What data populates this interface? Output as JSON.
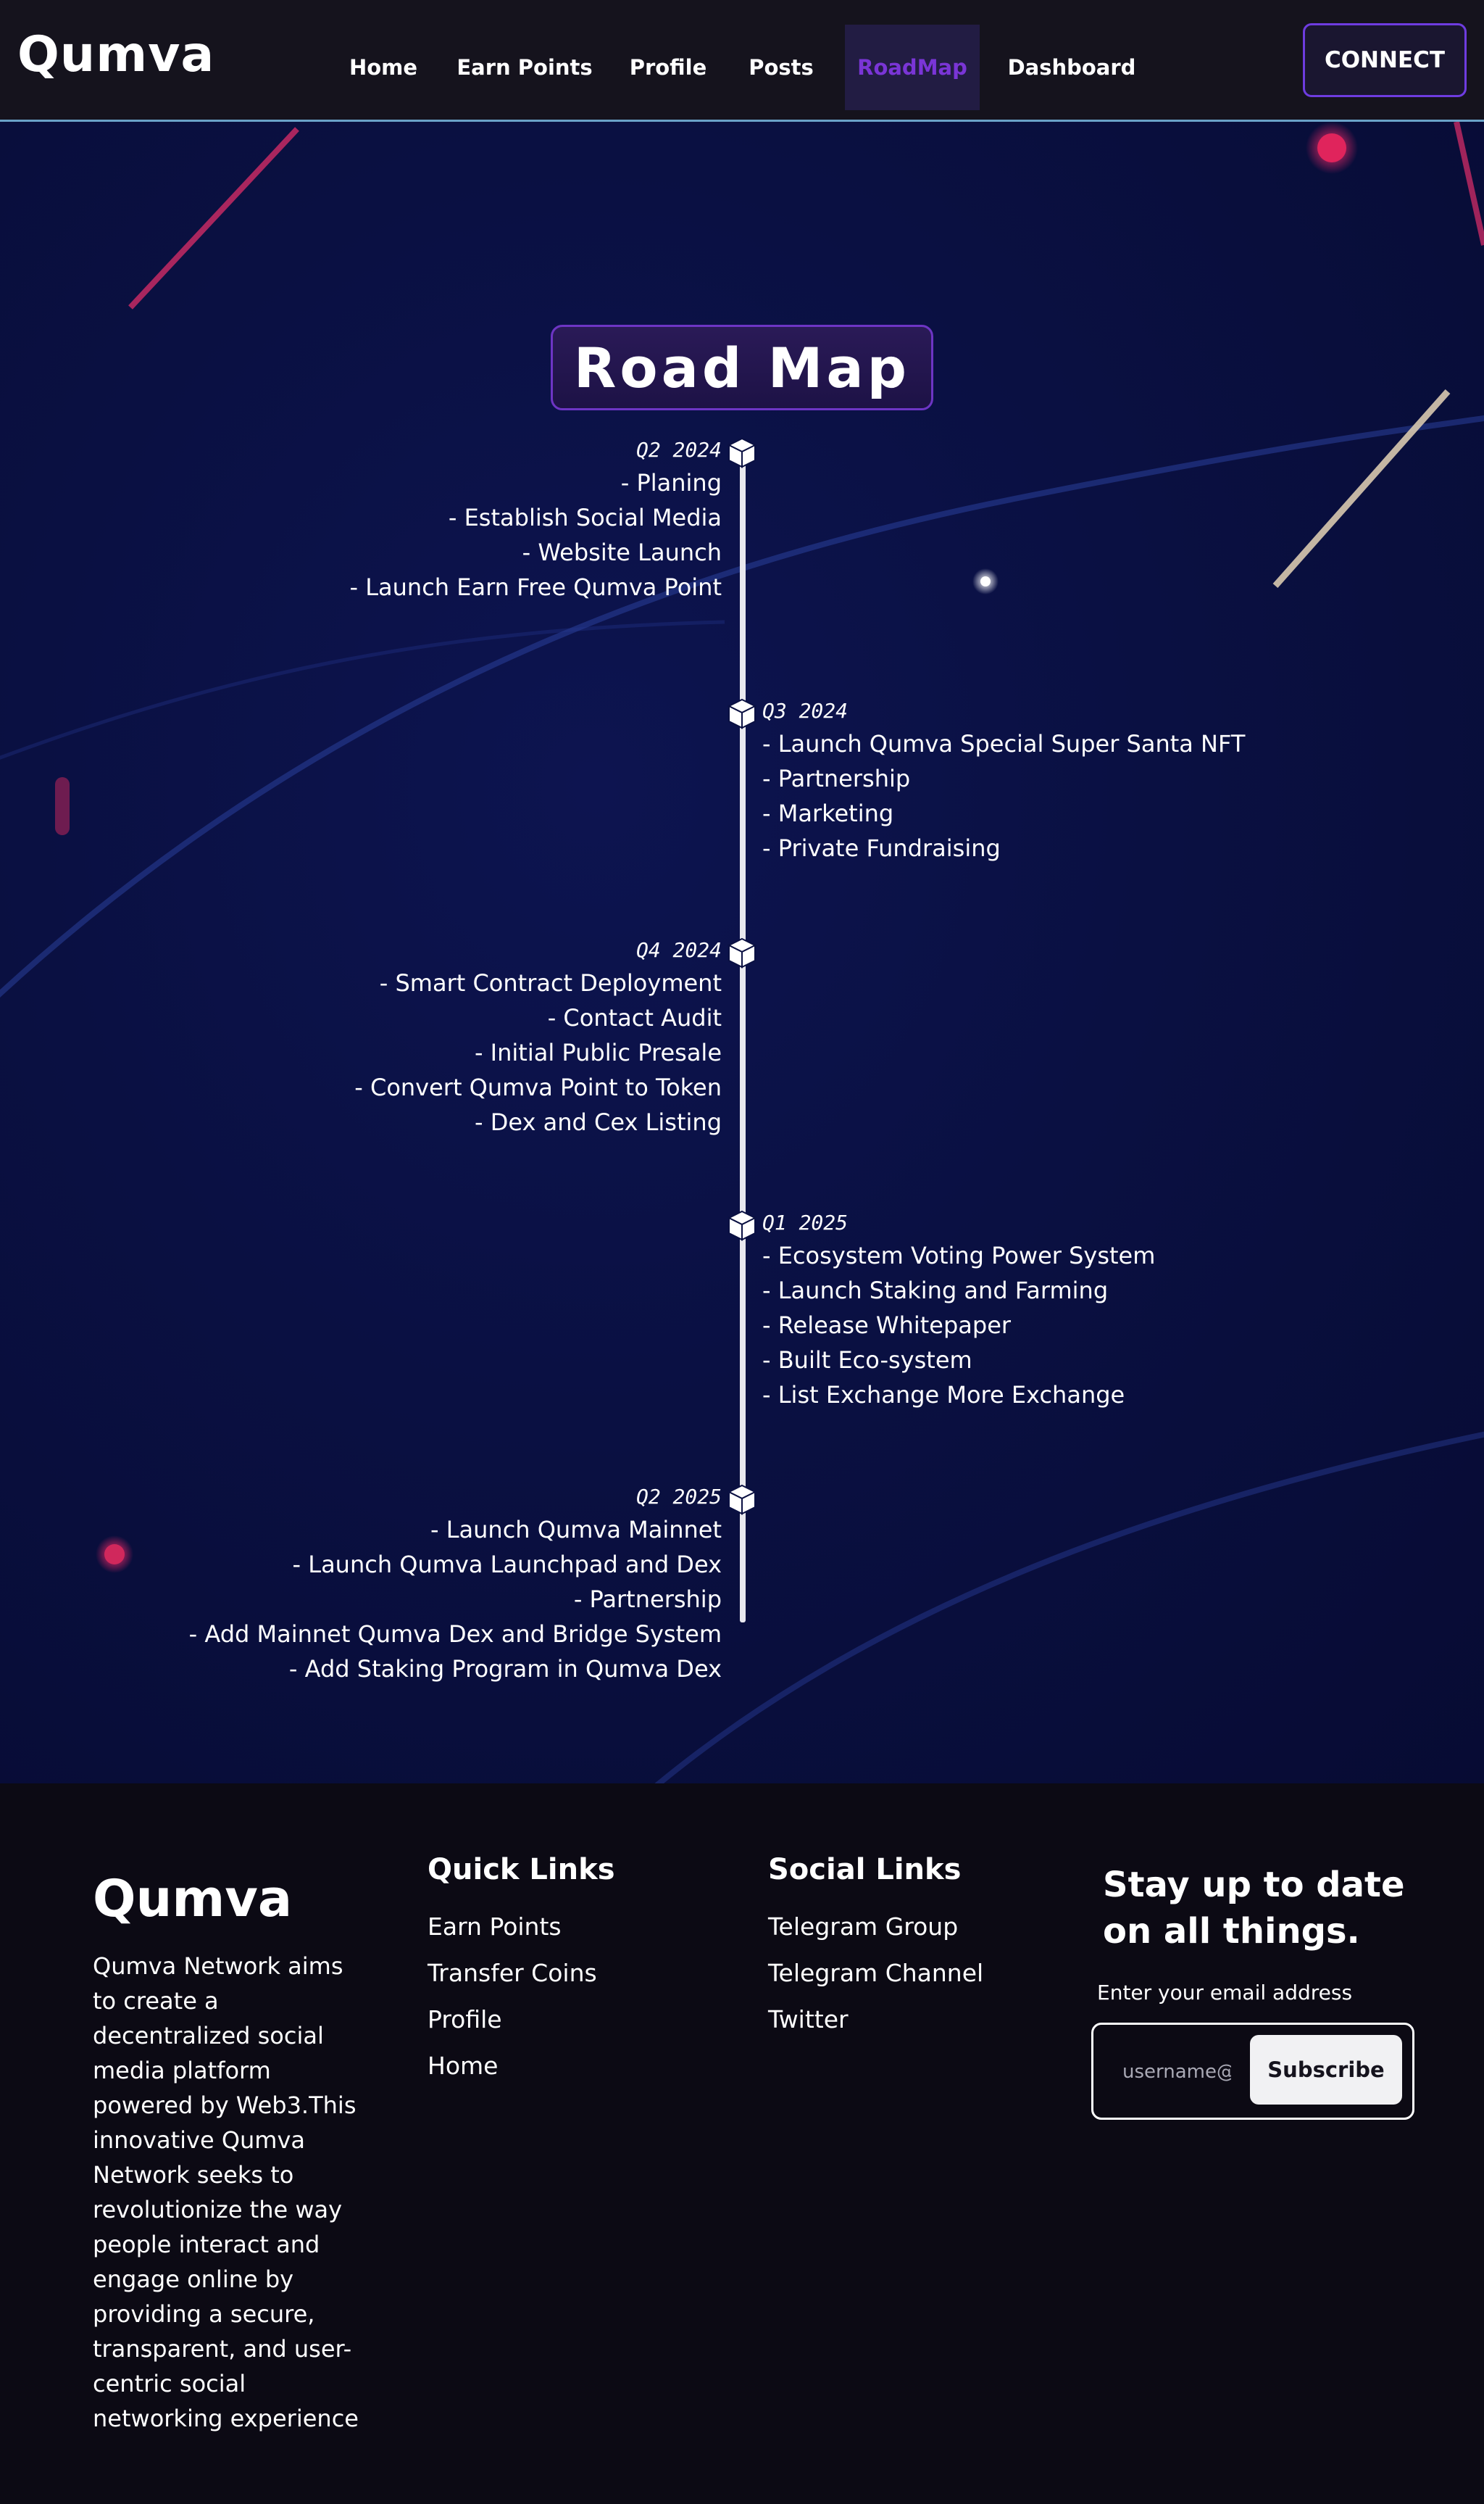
{
  "header": {
    "brand": "Qumva",
    "nav": [
      {
        "label": "Home",
        "name": "nav-home"
      },
      {
        "label": "Earn Points",
        "name": "nav-earn-points"
      },
      {
        "label": "Profile",
        "name": "nav-profile"
      },
      {
        "label": "Posts",
        "name": "nav-posts"
      },
      {
        "label": "RoadMap",
        "name": "nav-roadmap",
        "active": true
      },
      {
        "label": "Dashboard",
        "name": "nav-dashboard"
      }
    ],
    "connect_label": "CONNECT"
  },
  "roadmap": {
    "title": "Road Map",
    "milestones": [
      {
        "quarter": "Q2 2024",
        "side": "left",
        "items": [
          "- Planing",
          "- Establish Social Media",
          "- Website Launch",
          "- Launch Earn Free Qumva Point"
        ]
      },
      {
        "quarter": "Q3 2024",
        "side": "right",
        "items": [
          "- Launch Qumva Special Super Santa NFT",
          "- Partnership",
          "- Marketing",
          "- Private Fundraising"
        ]
      },
      {
        "quarter": "Q4 2024",
        "side": "left",
        "items": [
          "- Smart Contract Deployment",
          "- Contact Audit",
          "- Initial Public Presale",
          "- Convert Qumva Point to Token",
          "- Dex and Cex Listing"
        ]
      },
      {
        "quarter": "Q1 2025",
        "side": "right",
        "items": [
          "- Ecosystem Voting Power System",
          "- Launch Staking and Farming",
          "- Release Whitepaper",
          "- Built Eco-system",
          "- List Exchange More Exchange"
        ]
      },
      {
        "quarter": "Q2 2025",
        "side": "left",
        "items": [
          "- Launch Qumva Mainnet",
          "- Launch Qumva Launchpad and Dex",
          "- Partnership",
          "- Add Mainnet Qumva Dex and Bridge System",
          "- Add Staking Program in Qumva Dex"
        ]
      }
    ]
  },
  "footer": {
    "brand": "Qumva",
    "about": "Qumva Network aims to create a decentralized social media platform powered by Web3.This innovative Qumva Network seeks to revolutionize the way people interact and engage online by providing a secure, transparent, and user-centric social networking experience",
    "quick_links": {
      "title": "Quick Links",
      "items": [
        "Earn Points",
        "Transfer Coins",
        "Profile",
        "Home"
      ]
    },
    "social_links": {
      "title": "Social Links",
      "items": [
        "Telegram Group",
        "Telegram Channel",
        "Twitter"
      ]
    },
    "newsletter": {
      "title": "Stay up to date on all things.",
      "label": "Enter your email address",
      "placeholder": "username@",
      "button": "Subscribe"
    }
  },
  "colors": {
    "accent_purple": "#7a35d6",
    "header_border": "#6aa2c8",
    "hero_bg": "#0a1042",
    "footer_bg": "#0c0a14"
  },
  "icons": {
    "timeline_node": "cube-icon"
  }
}
